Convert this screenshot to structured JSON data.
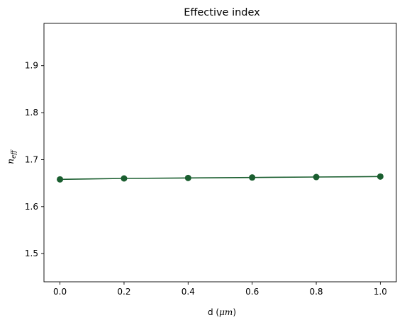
{
  "chart_data": {
    "type": "line",
    "title": "Effective index",
    "xlabel": {
      "prefix": "d (",
      "math": "μm",
      "suffix": ")"
    },
    "ylabel": {
      "base": "n",
      "sub": "eff"
    },
    "x": [
      0.0,
      0.2,
      0.4,
      0.6,
      0.8,
      1.0
    ],
    "series": [
      {
        "values": [
          1.658,
          1.66,
          1.661,
          1.662,
          1.663,
          1.664
        ],
        "color": "#1a5e2f",
        "marker": "circle"
      }
    ],
    "xlim": [
      -0.05,
      1.05
    ],
    "ylim": [
      1.44,
      1.99
    ],
    "xticks": [
      "0.0",
      "0.2",
      "0.4",
      "0.6",
      "0.8",
      "1.0"
    ],
    "yticks": [
      "1.5",
      "1.6",
      "1.7",
      "1.8",
      "1.9"
    ],
    "grid": false,
    "legend": "none"
  }
}
